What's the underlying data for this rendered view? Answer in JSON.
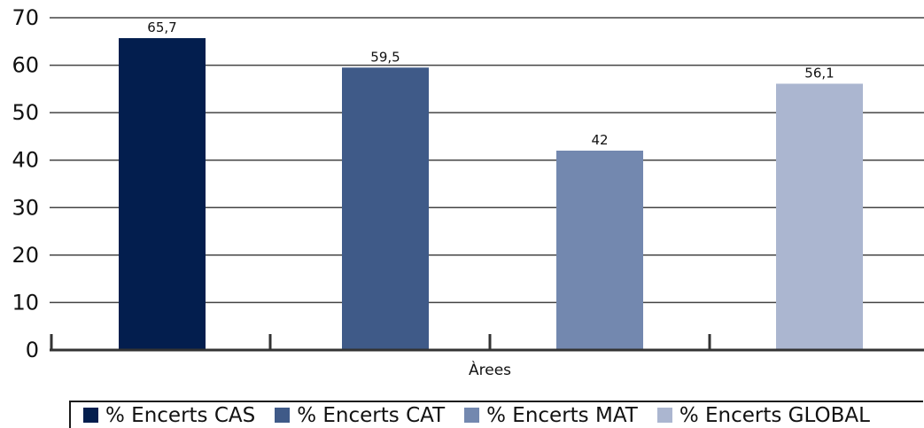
{
  "chart_data": {
    "type": "bar",
    "title": "",
    "xlabel": "Àrees",
    "ylabel": "",
    "ylim": [
      0,
      70
    ],
    "yticks": [
      "0",
      "10",
      "20",
      "30",
      "40",
      "50",
      "60",
      "70"
    ],
    "grid": true,
    "legend_position": "bottom",
    "series": [
      {
        "name": "% Encerts CAS",
        "value": 65.7,
        "label": "65,7",
        "color": "#031e4e"
      },
      {
        "name": "% Encerts CAT",
        "value": 59.5,
        "label": "59,5",
        "color": "#3f5a88"
      },
      {
        "name": "% Encerts MAT",
        "value": 42,
        "label": "42",
        "color": "#7388af"
      },
      {
        "name": "% Encerts GLOBAL",
        "value": 56.1,
        "label": "56,1",
        "color": "#abb6d0"
      }
    ]
  }
}
